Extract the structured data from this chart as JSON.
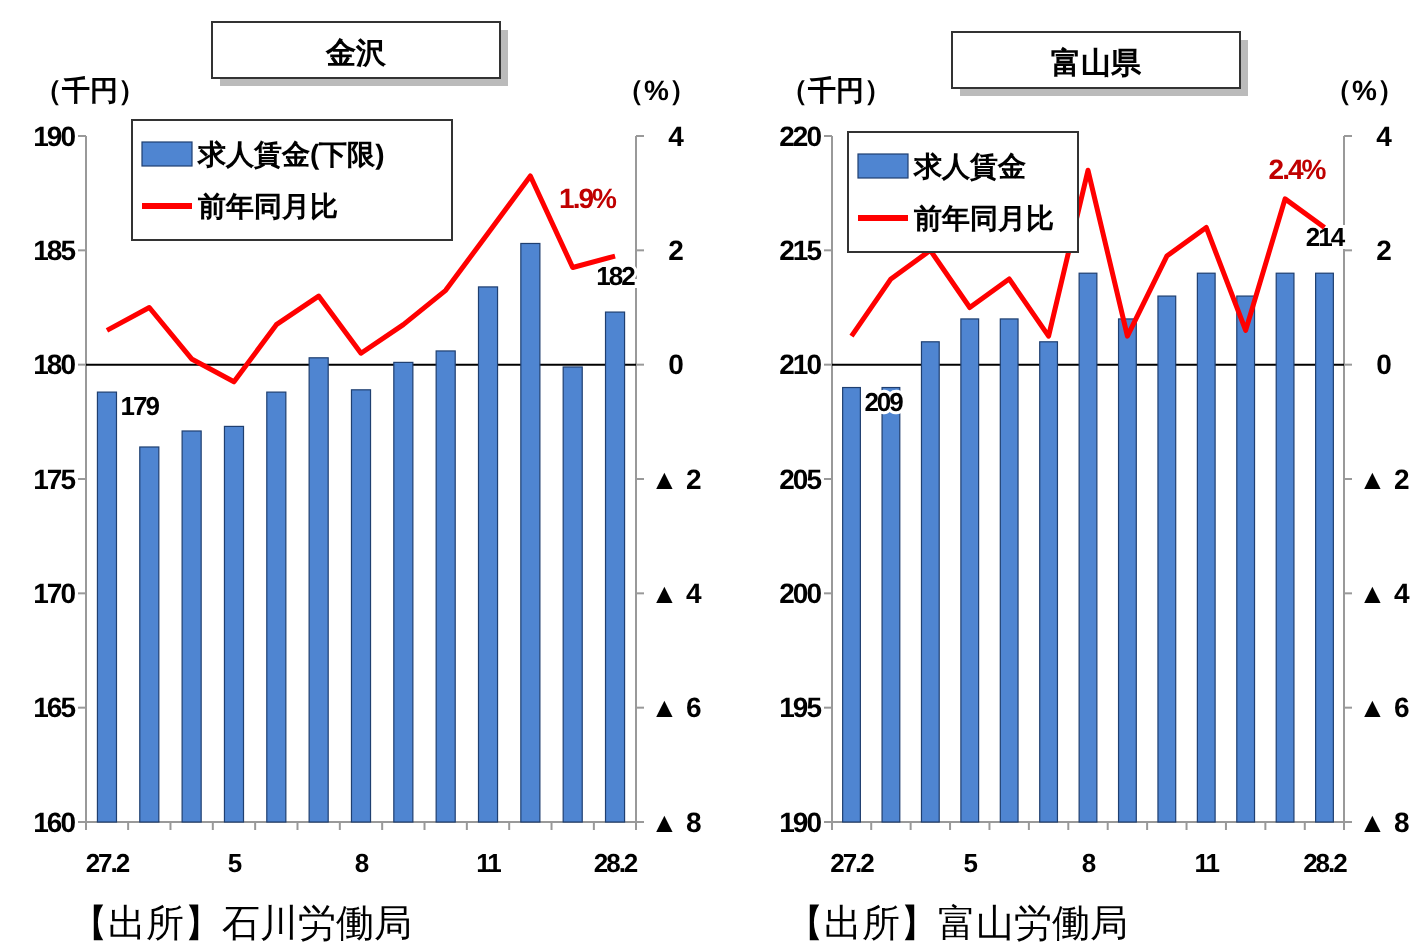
{
  "chart_data": [
    {
      "type": "bar",
      "title": "金沢",
      "ylabel": "（千円）",
      "y2label": "（%）",
      "categories": [
        "27.2",
        null,
        null,
        "5",
        null,
        null,
        "8",
        null,
        null,
        "11",
        null,
        null,
        "28.2"
      ],
      "ylim": [
        160,
        190
      ],
      "yticks": [
        160,
        165,
        170,
        175,
        180,
        185,
        190
      ],
      "y2lim": [
        -8,
        4
      ],
      "y2ticks": [
        {
          "value": -8,
          "label": "▲ 8"
        },
        {
          "value": -6,
          "label": "▲ 6"
        },
        {
          "value": -4,
          "label": "▲ 4"
        },
        {
          "value": -2,
          "label": "▲ 2"
        },
        0,
        2,
        4
      ],
      "legend": "top left",
      "grid": false,
      "ref_lines": [
        {
          "axis": "y2",
          "value": 0,
          "color": "#000000"
        }
      ],
      "annotations": [
        "【出所】石川労働局"
      ],
      "series": [
        {
          "name": "求人賃金(下限)",
          "type": "bar",
          "color": "#4f85d1",
          "values": [
            178.8,
            176.4,
            177.1,
            177.3,
            178.8,
            180.3,
            178.9,
            180.1,
            180.6,
            183.4,
            185.3,
            179.9,
            182.3
          ],
          "value_labels": [
            "179",
            null,
            null,
            null,
            null,
            null,
            null,
            null,
            null,
            null,
            null,
            null,
            "182"
          ]
        },
        {
          "name": "前年同月比",
          "type": "line",
          "axis": "y2",
          "color": "#ff0000",
          "values": [
            0.6,
            1.0,
            0.1,
            -0.3,
            0.7,
            1.2,
            0.2,
            0.7,
            1.3,
            2.3,
            3.3,
            1.7,
            1.9
          ],
          "value_labels": [
            null,
            null,
            null,
            null,
            null,
            null,
            null,
            null,
            null,
            null,
            null,
            null,
            "1.9%"
          ]
        }
      ]
    },
    {
      "type": "bar",
      "title": "富山県",
      "ylabel": "（千円）",
      "y2label": "（%）",
      "categories": [
        "27.2",
        null,
        null,
        "5",
        null,
        null,
        "8",
        null,
        null,
        "11",
        null,
        null,
        "28.2"
      ],
      "ylim": [
        190,
        220
      ],
      "yticks": [
        190,
        195,
        200,
        205,
        210,
        215,
        220
      ],
      "y2lim": [
        -8,
        4
      ],
      "y2ticks": [
        {
          "value": -8,
          "label": "▲ 8"
        },
        {
          "value": -6,
          "label": "▲ 6"
        },
        {
          "value": -4,
          "label": "▲ 4"
        },
        {
          "value": -2,
          "label": "▲ 2"
        },
        0,
        2,
        4
      ],
      "legend": "top left",
      "grid": false,
      "ref_lines": [
        {
          "axis": "y2",
          "value": 0,
          "color": "#000000"
        }
      ],
      "annotations": [
        "【出所】富山労働局"
      ],
      "series": [
        {
          "name": "求人賃金",
          "type": "bar",
          "color": "#4f85d1",
          "values": [
            209,
            209,
            211,
            212,
            212,
            211,
            214,
            212,
            213,
            214,
            213,
            214,
            214
          ],
          "value_labels": [
            "209",
            null,
            null,
            null,
            null,
            null,
            null,
            null,
            null,
            null,
            null,
            null,
            "214"
          ]
        },
        {
          "name": "前年同月比",
          "type": "line",
          "axis": "y2",
          "color": "#ff0000",
          "values": [
            0.5,
            1.5,
            2.0,
            1.0,
            1.5,
            0.5,
            3.4,
            0.5,
            1.9,
            2.4,
            0.6,
            2.9,
            2.4
          ],
          "value_labels": [
            null,
            null,
            null,
            null,
            null,
            null,
            null,
            null,
            null,
            null,
            null,
            null,
            "2.4%"
          ]
        }
      ]
    }
  ]
}
